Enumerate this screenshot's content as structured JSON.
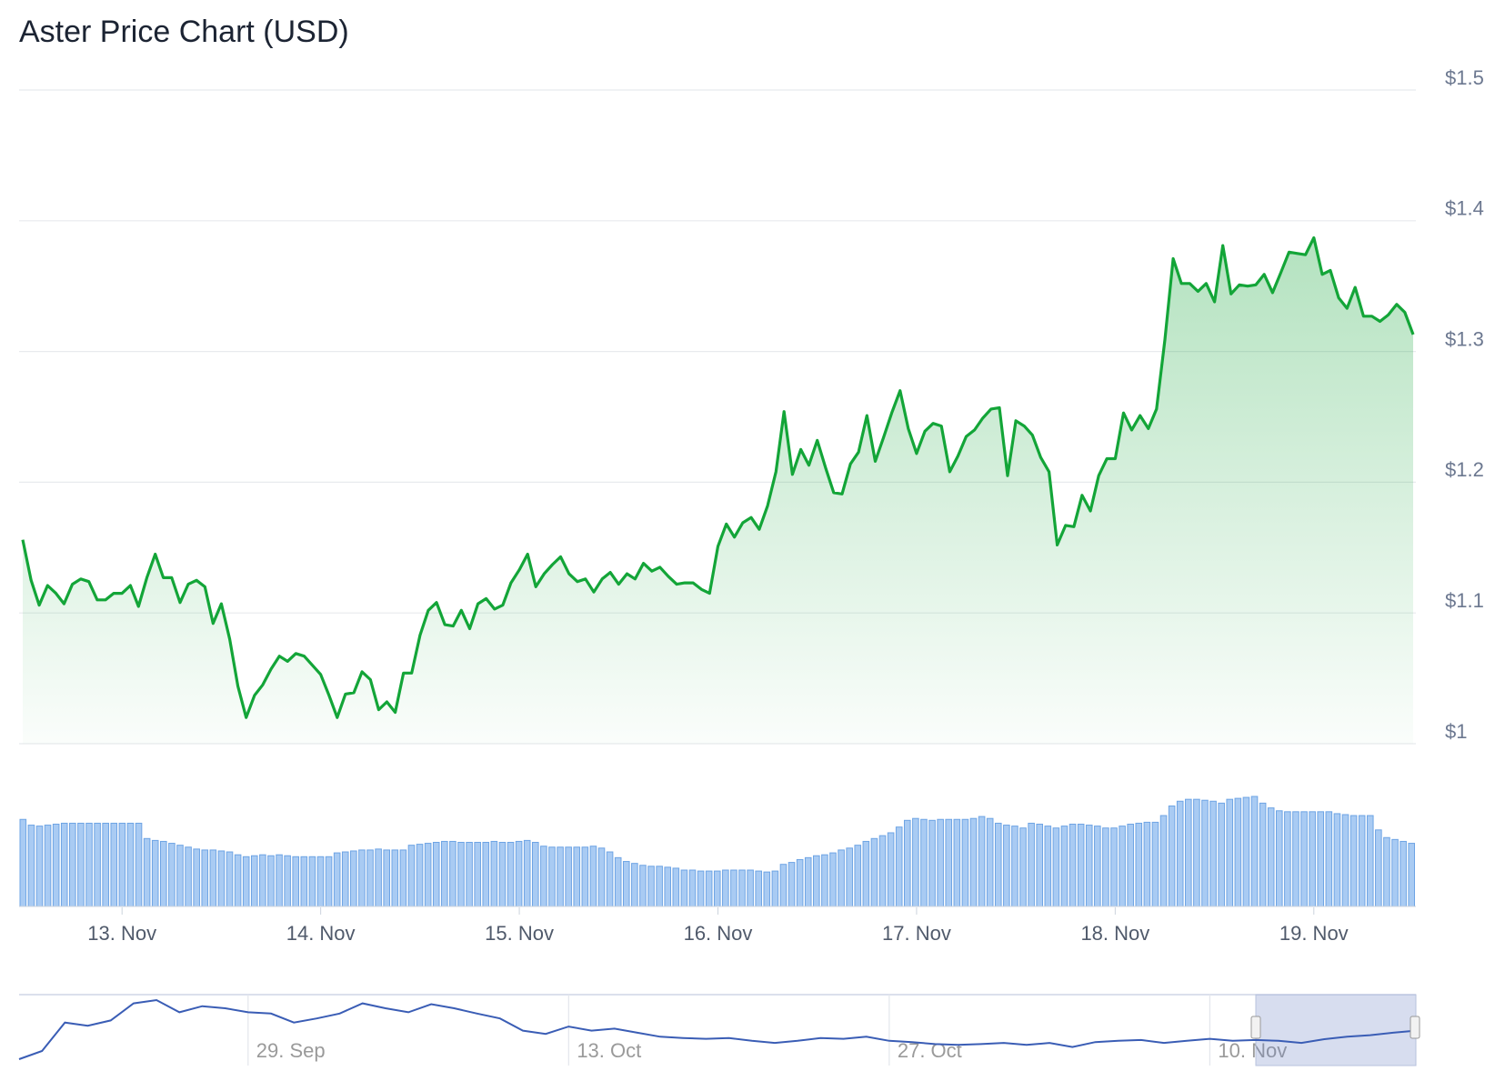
{
  "chart_data": [
    {
      "type": "area",
      "title": "Aster Price Chart (USD)",
      "color": "#13a538",
      "x": [
        12.5,
        12.542,
        12.583,
        12.625,
        12.667,
        12.708,
        12.75,
        12.792,
        12.833,
        12.875,
        12.917,
        12.958,
        13,
        13.042,
        13.083,
        13.125,
        13.167,
        13.208,
        13.25,
        13.292,
        13.333,
        13.375,
        13.417,
        13.458,
        13.5,
        13.542,
        13.583,
        13.625,
        13.667,
        13.708,
        13.75,
        13.792,
        13.833,
        13.875,
        13.917,
        13.958,
        14,
        14.042,
        14.083,
        14.125,
        14.167,
        14.208,
        14.25,
        14.292,
        14.333,
        14.375,
        14.417,
        14.458,
        14.5,
        14.542,
        14.583,
        14.625,
        14.667,
        14.708,
        14.75,
        14.792,
        14.833,
        14.875,
        14.917,
        14.958,
        15,
        15.042,
        15.083,
        15.125,
        15.167,
        15.208,
        15.25,
        15.292,
        15.333,
        15.375,
        15.417,
        15.458,
        15.5,
        15.542,
        15.583,
        15.625,
        15.667,
        15.708,
        15.75,
        15.792,
        15.833,
        15.875,
        15.917,
        15.958,
        16,
        16.042,
        16.083,
        16.125,
        16.167,
        16.208,
        16.25,
        16.292,
        16.333,
        16.375,
        16.417,
        16.458,
        16.5,
        16.542,
        16.583,
        16.625,
        16.667,
        16.708,
        16.75,
        16.792,
        16.833,
        16.875,
        16.917,
        16.958,
        17,
        17.042,
        17.083,
        17.125,
        17.167,
        17.208,
        17.25,
        17.292,
        17.333,
        17.375,
        17.417,
        17.458,
        17.5,
        17.542,
        17.583,
        17.625,
        17.667,
        17.708,
        17.75,
        17.792,
        17.833,
        17.875,
        17.917,
        17.958,
        18,
        18.042,
        18.083,
        18.125,
        18.167,
        18.208,
        18.25,
        18.292,
        18.333,
        18.375,
        18.417,
        18.458,
        18.5,
        18.542,
        18.583,
        18.625,
        18.667,
        18.708,
        18.75,
        18.792,
        18.833,
        18.875,
        18.917,
        18.958,
        19,
        19.042,
        19.083,
        19.125,
        19.167,
        19.208,
        19.25,
        19.292,
        19.333,
        19.375,
        19.417,
        19.458,
        19.5
      ],
      "values": [
        1.156,
        1.125,
        1.106,
        1.121,
        1.115,
        1.107,
        1.122,
        1.126,
        1.124,
        1.11,
        1.11,
        1.115,
        1.115,
        1.121,
        1.105,
        1.127,
        1.145,
        1.127,
        1.127,
        1.108,
        1.122,
        1.125,
        1.12,
        1.092,
        1.107,
        1.08,
        1.044,
        1.02,
        1.037,
        1.045,
        1.057,
        1.067,
        1.063,
        1.069,
        1.067,
        1.06,
        1.053,
        1.037,
        1.02,
        1.038,
        1.039,
        1.055,
        1.049,
        1.026,
        1.032,
        1.024,
        1.054,
        1.054,
        1.083,
        1.102,
        1.108,
        1.091,
        1.09,
        1.102,
        1.088,
        1.107,
        1.111,
        1.103,
        1.106,
        1.123,
        1.133,
        1.145,
        1.12,
        1.13,
        1.137,
        1.143,
        1.13,
        1.124,
        1.126,
        1.116,
        1.126,
        1.131,
        1.122,
        1.13,
        1.126,
        1.138,
        1.132,
        1.135,
        1.128,
        1.122,
        1.123,
        1.123,
        1.118,
        1.115,
        1.151,
        1.168,
        1.158,
        1.169,
        1.173,
        1.164,
        1.182,
        1.208,
        1.254,
        1.206,
        1.225,
        1.213,
        1.232,
        1.211,
        1.192,
        1.191,
        1.214,
        1.223,
        1.251,
        1.216,
        1.234,
        1.253,
        1.27,
        1.241,
        1.222,
        1.239,
        1.245,
        1.243,
        1.208,
        1.22,
        1.235,
        1.24,
        1.249,
        1.256,
        1.257,
        1.205,
        1.247,
        1.243,
        1.236,
        1.219,
        1.208,
        1.152,
        1.167,
        1.166,
        1.19,
        1.178,
        1.205,
        1.218,
        1.218,
        1.253,
        1.24,
        1.251,
        1.241,
        1.256,
        1.309,
        1.371,
        1.352,
        1.352,
        1.346,
        1.352,
        1.338,
        1.381,
        1.344,
        1.351,
        1.35,
        1.351,
        1.359,
        1.345,
        1.36,
        1.376,
        1.375,
        1.374,
        1.387,
        1.359,
        1.362,
        1.341,
        1.333,
        1.349,
        1.327,
        1.327,
        1.323,
        1.328,
        1.336,
        1.33,
        1.313
      ],
      "xlim": [
        12.5,
        19.5
      ],
      "xticks": [
        {
          "value": 13,
          "label": "13. Nov"
        },
        {
          "value": 14,
          "label": "14. Nov"
        },
        {
          "value": 15,
          "label": "15. Nov"
        },
        {
          "value": 16,
          "label": "16. Nov"
        },
        {
          "value": 17,
          "label": "17. Nov"
        },
        {
          "value": 18,
          "label": "18. Nov"
        },
        {
          "value": 19,
          "label": "19. Nov"
        }
      ],
      "ylim": [
        1,
        1.5
      ],
      "yticks": [
        {
          "value": 1,
          "label": "$1"
        },
        {
          "value": 1.1,
          "label": "$1.1"
        },
        {
          "value": 1.2,
          "label": "$1.2"
        },
        {
          "value": 1.3,
          "label": "$1.3"
        },
        {
          "value": 1.4,
          "label": "$1.4"
        },
        {
          "value": 1.5,
          "label": "$1.5"
        }
      ],
      "grid": true
    },
    {
      "type": "bar",
      "color": "#a9cbf3",
      "values": [
        91,
        85,
        84,
        85,
        86,
        87,
        87,
        87,
        87,
        87,
        87,
        87,
        87,
        87,
        87,
        71,
        69,
        68,
        66,
        64,
        62,
        60,
        59,
        59,
        58,
        57,
        54,
        52,
        53,
        54,
        53,
        54,
        53,
        52,
        52,
        52,
        52,
        52,
        56,
        57,
        58,
        59,
        59,
        60,
        59,
        59,
        59,
        64,
        65,
        66,
        67,
        68,
        68,
        67,
        67,
        67,
        67,
        68,
        67,
        67,
        68,
        69,
        67,
        63,
        62,
        62,
        62,
        62,
        62,
        63,
        61,
        57,
        51,
        47,
        45,
        43,
        42,
        42,
        41,
        40,
        38,
        38,
        37,
        37,
        37,
        38,
        38,
        38,
        38,
        37,
        36,
        37,
        44,
        46,
        49,
        51,
        53,
        54,
        56,
        59,
        61,
        64,
        68,
        71,
        74,
        77,
        83,
        90,
        92,
        91,
        90,
        91,
        91,
        91,
        91,
        92,
        94,
        92,
        87,
        85,
        84,
        82,
        87,
        86,
        84,
        82,
        84,
        86,
        86,
        85,
        84,
        82,
        82,
        84,
        86,
        87,
        88,
        88,
        95,
        105,
        110,
        112,
        112,
        111,
        110,
        108,
        112,
        113,
        114,
        115,
        108,
        103,
        100,
        99,
        99,
        99,
        99,
        99,
        99,
        97,
        96,
        95,
        95,
        95,
        80,
        72,
        70,
        68,
        66
      ]
    },
    {
      "type": "line",
      "color": "#3a5db5",
      "categories": [
        null,
        null,
        null,
        null,
        null,
        null,
        null,
        null,
        null,
        null,
        "29. Sep",
        null,
        null,
        null,
        null,
        null,
        null,
        null,
        null,
        null,
        null,
        null,
        null,
        null,
        "13. Oct",
        null,
        null,
        null,
        null,
        null,
        null,
        null,
        null,
        null,
        null,
        null,
        null,
        null,
        "27. Oct",
        null,
        null,
        null,
        null,
        null,
        null,
        null,
        null,
        null,
        null,
        null,
        null,
        null,
        "10. Nov",
        null,
        null,
        null,
        null,
        null,
        null,
        null,
        null,
        null
      ],
      "values": [
        0.63,
        0.83,
        1.53,
        1.45,
        1.58,
        2.0,
        2.08,
        1.78,
        1.93,
        1.88,
        1.78,
        1.75,
        1.53,
        1.63,
        1.75,
        2.0,
        1.88,
        1.78,
        1.98,
        1.88,
        1.75,
        1.63,
        1.33,
        1.25,
        1.43,
        1.33,
        1.38,
        1.28,
        1.18,
        1.15,
        1.13,
        1.15,
        1.08,
        1.03,
        1.08,
        1.15,
        1.13,
        1.18,
        1.08,
        1.05,
        1.0,
        0.98,
        1.0,
        1.03,
        0.98,
        1.03,
        0.93,
        1.05,
        1.08,
        1.1,
        1.03,
        1.08,
        1.13,
        1.08,
        1.1,
        1.08,
        1.03,
        1.12,
        1.18,
        1.22,
        1.28,
        1.33
      ]
    }
  ]
}
